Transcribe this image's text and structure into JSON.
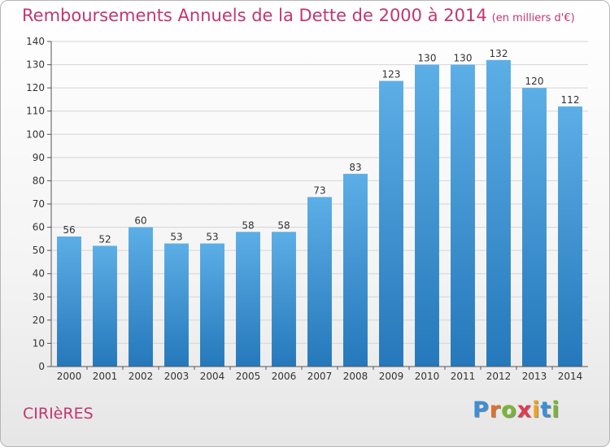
{
  "header": {
    "title": "Remboursements Annuels de la Dette de 2000 à 2014",
    "unit": "(en milliers d'€)"
  },
  "footer": {
    "place": "CIRIèRES",
    "logo_letters": [
      "P",
      "r",
      "o",
      "x",
      "i",
      "t",
      "i"
    ],
    "logo_colors": [
      "#3b8fd6",
      "#e0702a",
      "#7ab535",
      "#e13a4d",
      "#f2a31d",
      "#3b8fd6",
      "#7ab535"
    ]
  },
  "chart_data": {
    "type": "bar",
    "title": "Remboursements Annuels de la Dette de 2000 à 2014",
    "xlabel": "",
    "ylabel": "",
    "ylim": [
      0,
      140
    ],
    "yticks": [
      0,
      10,
      20,
      30,
      40,
      50,
      60,
      70,
      80,
      90,
      100,
      110,
      120,
      130,
      140
    ],
    "grid": true,
    "categories": [
      "2000",
      "2001",
      "2002",
      "2003",
      "2004",
      "2005",
      "2006",
      "2007",
      "2008",
      "2009",
      "2010",
      "2011",
      "2012",
      "2013",
      "2014"
    ],
    "values": [
      56,
      52,
      60,
      53,
      53,
      58,
      58,
      73,
      83,
      123,
      130,
      130,
      132,
      120,
      112
    ],
    "bar_color_top": "#5caee6",
    "bar_color_bottom": "#2578ba",
    "grid_color": "#d4d4d4"
  }
}
